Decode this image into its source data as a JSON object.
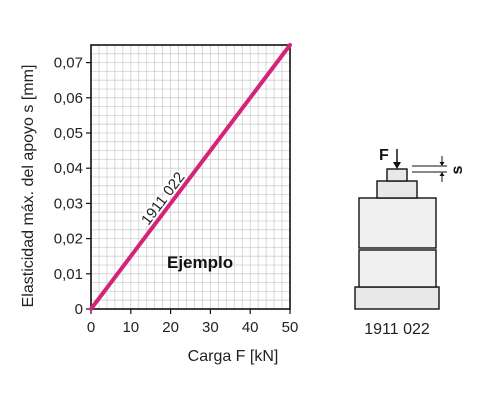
{
  "chart_data": {
    "type": "line",
    "ylabel": "Elasticidad máx. del apoyo  s [mm]",
    "xlabel": "Carga F [kN]",
    "xlim": [
      0,
      50
    ],
    "ylim": [
      0,
      0.075
    ],
    "x_ticks": [
      0,
      10,
      20,
      30,
      40,
      50
    ],
    "x_tick_labels": [
      "0",
      "10",
      "20",
      "30",
      "40",
      "50"
    ],
    "y_ticks": [
      0,
      0.01,
      0.02,
      0.03,
      0.04,
      0.05,
      0.06,
      0.07
    ],
    "y_tick_labels": [
      "0",
      "0,01",
      "0,02",
      "0,03",
      "0,04",
      "0,05",
      "0,06",
      "0,07"
    ],
    "grid": true,
    "series": [
      {
        "name": "1911 022",
        "color": "#d6237a",
        "x": [
          0,
          50
        ],
        "y": [
          0,
          0.075
        ]
      }
    ],
    "annotations": [
      "Ejemplo"
    ]
  },
  "component": {
    "force_label": "F",
    "spring_label": "s",
    "part_number": "1911 022"
  }
}
